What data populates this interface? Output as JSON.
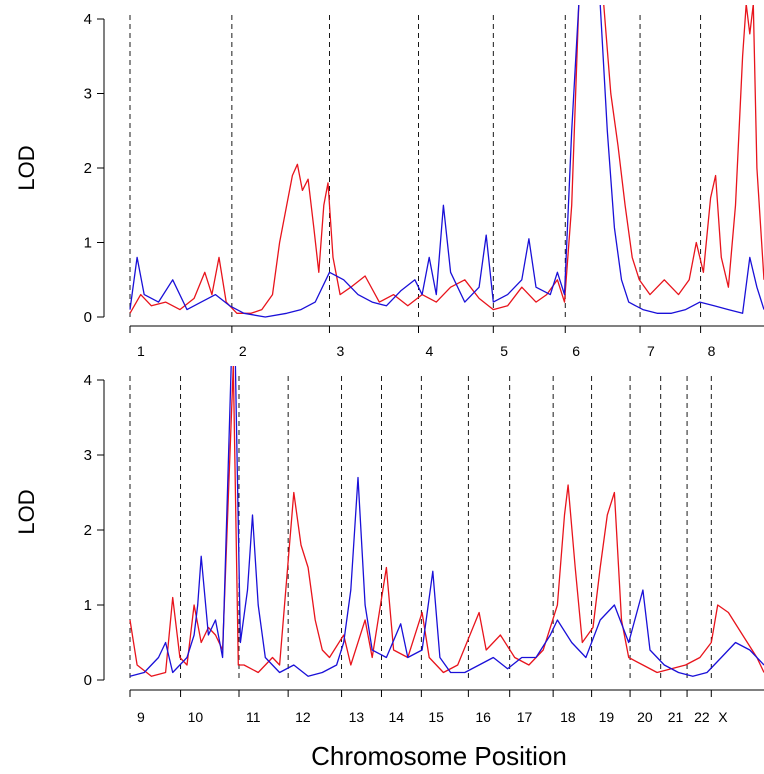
{
  "colors": {
    "series_1": "#e8141c",
    "series_2": "#1a10d8",
    "divider": "#000000"
  },
  "xlabel": "Chromosome Position",
  "chart_data": [
    {
      "type": "line",
      "panel": "top",
      "ylabel": "LOD",
      "ylim": [
        0,
        4
      ],
      "yticks": [
        0,
        1,
        2,
        3,
        4
      ],
      "xlim": [
        0,
        8.9
      ],
      "chromosomes": [
        "1",
        "2",
        "3",
        "4",
        "5",
        "6",
        "7",
        "8"
      ],
      "chromosome_starts": [
        0,
        1.43,
        2.8,
        4.05,
        5.1,
        6.11,
        7.16,
        8.01
      ],
      "series": [
        {
          "color_key": "series_1",
          "points": [
            [
              0,
              0.05
            ],
            [
              0.15,
              0.3
            ],
            [
              0.3,
              0.15
            ],
            [
              0.5,
              0.2
            ],
            [
              0.7,
              0.1
            ],
            [
              0.9,
              0.25
            ],
            [
              1.05,
              0.6
            ],
            [
              1.15,
              0.3
            ],
            [
              1.25,
              0.8
            ],
            [
              1.35,
              0.2
            ],
            [
              1.5,
              0.05
            ],
            [
              1.7,
              0.05
            ],
            [
              1.85,
              0.1
            ],
            [
              2,
              0.3
            ],
            [
              2.1,
              1.0
            ],
            [
              2.2,
              1.5
            ],
            [
              2.28,
              1.9
            ],
            [
              2.35,
              2.05
            ],
            [
              2.42,
              1.7
            ],
            [
              2.5,
              1.85
            ],
            [
              2.58,
              1.2
            ],
            [
              2.65,
              0.6
            ],
            [
              2.72,
              1.5
            ],
            [
              2.78,
              1.8
            ],
            [
              2.85,
              0.8
            ],
            [
              2.95,
              0.3
            ],
            [
              3.1,
              0.4
            ],
            [
              3.3,
              0.55
            ],
            [
              3.5,
              0.2
            ],
            [
              3.7,
              0.3
            ],
            [
              3.9,
              0.15
            ],
            [
              4.1,
              0.3
            ],
            [
              4.3,
              0.2
            ],
            [
              4.5,
              0.4
            ],
            [
              4.7,
              0.5
            ],
            [
              4.9,
              0.25
            ],
            [
              5.1,
              0.1
            ],
            [
              5.3,
              0.15
            ],
            [
              5.5,
              0.4
            ],
            [
              5.7,
              0.2
            ],
            [
              5.85,
              0.3
            ],
            [
              6.0,
              0.5
            ],
            [
              6.1,
              0.2
            ],
            [
              6.2,
              1.5
            ],
            [
              6.3,
              4.2
            ],
            [
              6.35,
              4.2
            ],
            [
              6.5,
              4.2
            ],
            [
              6.65,
              4.2
            ],
            [
              6.75,
              3.0
            ],
            [
              6.85,
              2.3
            ],
            [
              6.95,
              1.5
            ],
            [
              7.05,
              0.8
            ],
            [
              7.15,
              0.5
            ],
            [
              7.3,
              0.3
            ],
            [
              7.5,
              0.5
            ],
            [
              7.7,
              0.3
            ],
            [
              7.85,
              0.5
            ],
            [
              7.95,
              1.0
            ],
            [
              8.05,
              0.6
            ],
            [
              8.15,
              1.6
            ],
            [
              8.22,
              1.9
            ],
            [
              8.3,
              0.8
            ],
            [
              8.4,
              0.4
            ],
            [
              8.5,
              1.5
            ],
            [
              8.6,
              3.5
            ],
            [
              8.65,
              4.2
            ],
            [
              8.7,
              3.8
            ],
            [
              8.75,
              4.2
            ],
            [
              8.8,
              2.0
            ],
            [
              8.9,
              0.5
            ]
          ]
        },
        {
          "color_key": "series_2",
          "points": [
            [
              0,
              0.1
            ],
            [
              0.1,
              0.8
            ],
            [
              0.2,
              0.3
            ],
            [
              0.4,
              0.2
            ],
            [
              0.6,
              0.5
            ],
            [
              0.8,
              0.1
            ],
            [
              1.0,
              0.2
            ],
            [
              1.2,
              0.3
            ],
            [
              1.4,
              0.15
            ],
            [
              1.6,
              0.05
            ],
            [
              1.9,
              0.0
            ],
            [
              2.2,
              0.05
            ],
            [
              2.4,
              0.1
            ],
            [
              2.6,
              0.2
            ],
            [
              2.8,
              0.6
            ],
            [
              3.0,
              0.5
            ],
            [
              3.2,
              0.3
            ],
            [
              3.4,
              0.2
            ],
            [
              3.6,
              0.15
            ],
            [
              3.8,
              0.35
            ],
            [
              4.0,
              0.5
            ],
            [
              4.1,
              0.3
            ],
            [
              4.2,
              0.8
            ],
            [
              4.3,
              0.3
            ],
            [
              4.4,
              1.5
            ],
            [
              4.5,
              0.6
            ],
            [
              4.7,
              0.2
            ],
            [
              4.9,
              0.4
            ],
            [
              5.0,
              1.1
            ],
            [
              5.1,
              0.2
            ],
            [
              5.3,
              0.3
            ],
            [
              5.5,
              0.5
            ],
            [
              5.6,
              1.05
            ],
            [
              5.7,
              0.4
            ],
            [
              5.9,
              0.3
            ],
            [
              6.0,
              0.6
            ],
            [
              6.1,
              0.3
            ],
            [
              6.2,
              2.5
            ],
            [
              6.3,
              4.2
            ],
            [
              6.5,
              4.2
            ],
            [
              6.6,
              4.2
            ],
            [
              6.7,
              2.5
            ],
            [
              6.8,
              1.2
            ],
            [
              6.9,
              0.5
            ],
            [
              7.0,
              0.2
            ],
            [
              7.2,
              0.1
            ],
            [
              7.4,
              0.05
            ],
            [
              7.6,
              0.05
            ],
            [
              7.8,
              0.1
            ],
            [
              8.0,
              0.2
            ],
            [
              8.2,
              0.15
            ],
            [
              8.4,
              0.1
            ],
            [
              8.6,
              0.05
            ],
            [
              8.7,
              0.8
            ],
            [
              8.8,
              0.4
            ],
            [
              8.9,
              0.1
            ]
          ]
        }
      ]
    },
    {
      "type": "line",
      "panel": "bottom",
      "ylabel": "LOD",
      "ylim": [
        0,
        4
      ],
      "yticks": [
        0,
        1,
        2,
        3,
        4
      ],
      "xlim": [
        0,
        8.9
      ],
      "chromosomes": [
        "9",
        "10",
        "11",
        "12",
        "13",
        "14",
        "15",
        "16",
        "17",
        "18",
        "19",
        "20",
        "21",
        "22",
        "X"
      ],
      "chromosome_starts": [
        0,
        0.71,
        1.53,
        2.22,
        2.97,
        3.53,
        4.09,
        4.75,
        5.33,
        5.94,
        6.48,
        7.02,
        7.45,
        7.82,
        8.16
      ],
      "series": [
        {
          "color_key": "series_1",
          "points": [
            [
              0,
              0.8
            ],
            [
              0.1,
              0.2
            ],
            [
              0.3,
              0.05
            ],
            [
              0.5,
              0.1
            ],
            [
              0.6,
              1.1
            ],
            [
              0.7,
              0.3
            ],
            [
              0.8,
              0.2
            ],
            [
              0.9,
              1.0
            ],
            [
              1.0,
              0.5
            ],
            [
              1.1,
              0.7
            ],
            [
              1.2,
              0.6
            ],
            [
              1.3,
              0.4
            ],
            [
              1.45,
              4.2
            ],
            [
              1.52,
              0.2
            ],
            [
              1.6,
              0.2
            ],
            [
              1.8,
              0.1
            ],
            [
              2.0,
              0.3
            ],
            [
              2.1,
              0.2
            ],
            [
              2.3,
              2.5
            ],
            [
              2.4,
              1.8
            ],
            [
              2.5,
              1.5
            ],
            [
              2.6,
              0.8
            ],
            [
              2.7,
              0.4
            ],
            [
              2.8,
              0.3
            ],
            [
              3.0,
              0.6
            ],
            [
              3.1,
              0.2
            ],
            [
              3.3,
              0.8
            ],
            [
              3.4,
              0.3
            ],
            [
              3.6,
              1.5
            ],
            [
              3.7,
              0.4
            ],
            [
              3.9,
              0.3
            ],
            [
              4.1,
              0.9
            ],
            [
              4.2,
              0.3
            ],
            [
              4.4,
              0.1
            ],
            [
              4.6,
              0.2
            ],
            [
              4.9,
              0.9
            ],
            [
              5.0,
              0.4
            ],
            [
              5.2,
              0.6
            ],
            [
              5.4,
              0.3
            ],
            [
              5.6,
              0.2
            ],
            [
              5.8,
              0.4
            ],
            [
              6.0,
              1.0
            ],
            [
              6.1,
              2.2
            ],
            [
              6.15,
              2.6
            ],
            [
              6.25,
              1.5
            ],
            [
              6.35,
              0.5
            ],
            [
              6.5,
              0.7
            ],
            [
              6.6,
              1.5
            ],
            [
              6.7,
              2.2
            ],
            [
              6.8,
              2.5
            ],
            [
              6.9,
              0.8
            ],
            [
              7.0,
              0.3
            ],
            [
              7.2,
              0.2
            ],
            [
              7.4,
              0.1
            ],
            [
              7.6,
              0.15
            ],
            [
              7.8,
              0.2
            ],
            [
              8.0,
              0.3
            ],
            [
              8.16,
              0.5
            ],
            [
              8.25,
              1.0
            ],
            [
              8.4,
              0.9
            ],
            [
              8.6,
              0.6
            ],
            [
              8.8,
              0.3
            ],
            [
              8.9,
              0.1
            ]
          ]
        },
        {
          "color_key": "series_2",
          "points": [
            [
              0,
              0.05
            ],
            [
              0.2,
              0.1
            ],
            [
              0.4,
              0.3
            ],
            [
              0.5,
              0.5
            ],
            [
              0.6,
              0.1
            ],
            [
              0.8,
              0.3
            ],
            [
              0.9,
              0.6
            ],
            [
              0.95,
              1.0
            ],
            [
              1.0,
              1.65
            ],
            [
              1.1,
              0.6
            ],
            [
              1.2,
              0.8
            ],
            [
              1.3,
              0.3
            ],
            [
              1.42,
              4.2
            ],
            [
              1.48,
              4.2
            ],
            [
              1.55,
              0.5
            ],
            [
              1.65,
              1.2
            ],
            [
              1.72,
              2.2
            ],
            [
              1.8,
              1.0
            ],
            [
              1.9,
              0.3
            ],
            [
              2.1,
              0.1
            ],
            [
              2.3,
              0.2
            ],
            [
              2.5,
              0.05
            ],
            [
              2.7,
              0.1
            ],
            [
              2.9,
              0.2
            ],
            [
              3.0,
              0.5
            ],
            [
              3.1,
              1.2
            ],
            [
              3.2,
              2.7
            ],
            [
              3.3,
              1.0
            ],
            [
              3.4,
              0.4
            ],
            [
              3.6,
              0.3
            ],
            [
              3.8,
              0.75
            ],
            [
              3.9,
              0.3
            ],
            [
              4.1,
              0.4
            ],
            [
              4.25,
              1.45
            ],
            [
              4.35,
              0.3
            ],
            [
              4.5,
              0.1
            ],
            [
              4.7,
              0.1
            ],
            [
              4.9,
              0.2
            ],
            [
              5.1,
              0.3
            ],
            [
              5.3,
              0.15
            ],
            [
              5.5,
              0.3
            ],
            [
              5.7,
              0.3
            ],
            [
              5.9,
              0.6
            ],
            [
              6.0,
              0.8
            ],
            [
              6.2,
              0.5
            ],
            [
              6.4,
              0.3
            ],
            [
              6.6,
              0.8
            ],
            [
              6.8,
              1.0
            ],
            [
              7.0,
              0.5
            ],
            [
              7.2,
              1.2
            ],
            [
              7.3,
              0.4
            ],
            [
              7.5,
              0.2
            ],
            [
              7.7,
              0.1
            ],
            [
              7.9,
              0.05
            ],
            [
              8.1,
              0.1
            ],
            [
              8.3,
              0.3
            ],
            [
              8.5,
              0.5
            ],
            [
              8.7,
              0.4
            ],
            [
              8.9,
              0.2
            ]
          ]
        }
      ]
    }
  ]
}
